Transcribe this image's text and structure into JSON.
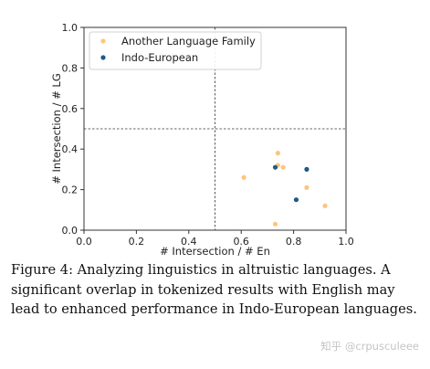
{
  "chart_data": {
    "type": "scatter",
    "xlabel": "# Intersection / # En",
    "ylabel": "# Intersection / # LG",
    "xlim": [
      0,
      1
    ],
    "ylim": [
      0,
      1
    ],
    "xticks": [
      "0.0",
      "0.2",
      "0.4",
      "0.6",
      "0.8",
      "1.0"
    ],
    "yticks": [
      "0.0",
      "0.2",
      "0.4",
      "0.6",
      "0.8",
      "1.0"
    ],
    "reference_lines": {
      "x": 0.5,
      "y": 0.5,
      "style": "dashed"
    },
    "legend_position": "top-left",
    "series": [
      {
        "name": "Another Language Family",
        "color": "#fdc57f",
        "points": [
          [
            0.61,
            0.26
          ],
          [
            0.74,
            0.38
          ],
          [
            0.74,
            0.32
          ],
          [
            0.76,
            0.31
          ],
          [
            0.73,
            0.03
          ],
          [
            0.85,
            0.21
          ],
          [
            0.92,
            0.12
          ]
        ]
      },
      {
        "name": "Indo-European",
        "color": "#1f5a86",
        "points": [
          [
            0.73,
            0.31
          ],
          [
            0.85,
            0.3
          ],
          [
            0.81,
            0.15
          ]
        ]
      }
    ]
  },
  "caption": "Figure 4: Analyzing linguistics in altruistic languages. A significant overlap in tokenized results with English may lead to enhanced performance in Indo-European languages.",
  "watermark": "知乎 @crpusculeee"
}
